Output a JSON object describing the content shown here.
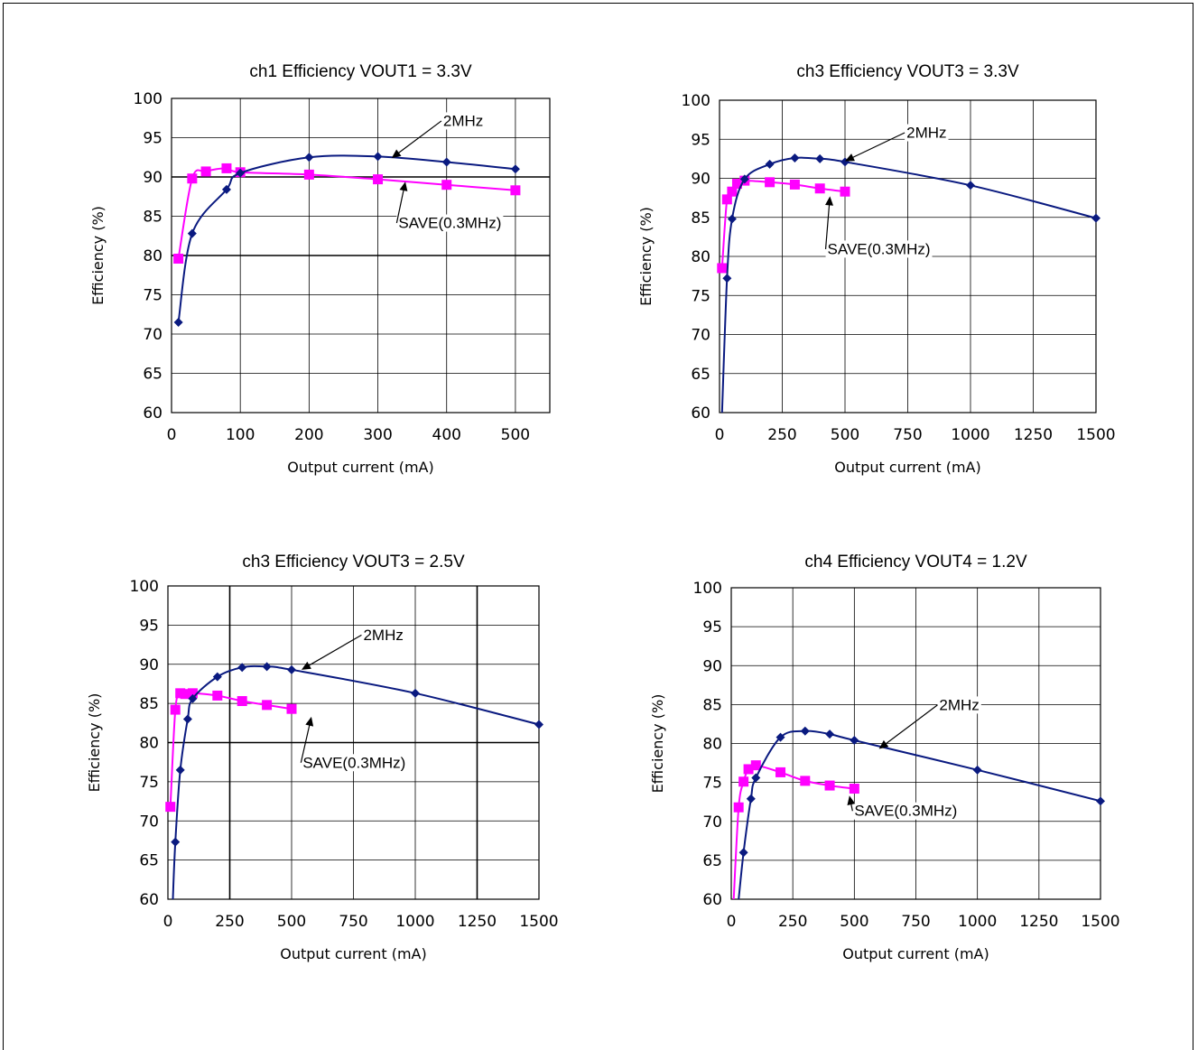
{
  "colors": {
    "series_2mhz": "#0a1a80",
    "series_save": "#ff00ff",
    "grid": "#000000"
  },
  "chart_data": [
    {
      "type": "line",
      "title": "ch1 Efficiency VOUT1 = 3.3V",
      "xlabel": "Output current (mA)",
      "ylabel": "Efficiency (%)",
      "xlim": [
        0,
        550
      ],
      "ylim": [
        60,
        100
      ],
      "xticks": [
        0,
        100,
        200,
        300,
        400,
        500
      ],
      "yticks": [
        60,
        65,
        70,
        75,
        80,
        85,
        90,
        95,
        100
      ],
      "xgrid": [
        0,
        100,
        200,
        300,
        400,
        500,
        550
      ],
      "bold_ygrid": [
        80,
        90
      ],
      "grid": true,
      "series": [
        {
          "name": "2MHz",
          "marker": "diamond",
          "color": "#0a1a80",
          "x": [
            10,
            30,
            80,
            100,
            200,
            300,
            400,
            500
          ],
          "y": [
            71.5,
            82.8,
            88.4,
            90.5,
            92.5,
            92.6,
            91.9,
            91.0
          ]
        },
        {
          "name": "SAVE(0.3MHz)",
          "marker": "square",
          "color": "#ff00ff",
          "x": [
            10,
            30,
            50,
            80,
            100,
            200,
            300,
            400,
            500
          ],
          "y": [
            79.6,
            89.8,
            90.7,
            91.1,
            90.6,
            90.3,
            89.7,
            89.0,
            88.3
          ]
        }
      ],
      "annotations": [
        {
          "text": "2MHz",
          "series": "2MHz",
          "at_x": 320,
          "at_y": 92.4,
          "text_x": 395,
          "text_y": 96.5
        },
        {
          "text": "SAVE(0.3MHz)",
          "series": "SAVE(0.3MHz)",
          "at_x": 340,
          "at_y": 89.4,
          "text_x": 330,
          "text_y": 83.5
        }
      ]
    },
    {
      "type": "line",
      "title": "ch3 Efficiency VOUT3 = 3.3V",
      "xlabel": "Output current (mA)",
      "ylabel": "Efficiency (%)",
      "xlim": [
        0,
        1500
      ],
      "ylim": [
        60,
        100
      ],
      "xticks": [
        0,
        250,
        500,
        750,
        1000,
        1250,
        1500
      ],
      "yticks": [
        60,
        65,
        70,
        75,
        80,
        85,
        90,
        95,
        100
      ],
      "xgrid": [
        0,
        250,
        500,
        750,
        1000,
        1250,
        1500
      ],
      "bold_ygrid": [],
      "grid": true,
      "series": [
        {
          "name": "2MHz",
          "marker": "diamond",
          "color": "#0a1a80",
          "x": [
            10,
            30,
            50,
            100,
            200,
            300,
            400,
            500,
            1000,
            1500
          ],
          "y": [
            60,
            77.2,
            84.8,
            89.9,
            91.8,
            92.6,
            92.5,
            92.1,
            89.1,
            84.9
          ]
        },
        {
          "name": "SAVE(0.3MHz)",
          "marker": "square",
          "color": "#ff00ff",
          "x": [
            10,
            30,
            50,
            70,
            100,
            200,
            300,
            400,
            500
          ],
          "y": [
            78.5,
            87.3,
            88.3,
            89.3,
            89.7,
            89.5,
            89.2,
            88.7,
            88.3
          ]
        }
      ],
      "annotations": [
        {
          "text": "2MHz",
          "series": "2MHz",
          "at_x": 500,
          "at_y": 92.2,
          "text_x": 745,
          "text_y": 95.2
        },
        {
          "text": "SAVE(0.3MHz)",
          "series": "SAVE(0.3MHz)",
          "at_x": 440,
          "at_y": 87.7,
          "text_x": 430,
          "text_y": 80.3
        }
      ]
    },
    {
      "type": "line",
      "title": "ch3 Efficiency VOUT3 = 2.5V",
      "xlabel": "Output current (mA)",
      "ylabel": "Efficiency (%)",
      "xlim": [
        0,
        1500
      ],
      "ylim": [
        60,
        100
      ],
      "xticks": [
        0,
        250,
        500,
        750,
        1000,
        1250,
        1500
      ],
      "yticks": [
        60,
        65,
        70,
        75,
        80,
        85,
        90,
        95,
        100
      ],
      "xgrid": [
        0,
        250,
        500,
        750,
        1000,
        1250,
        1500
      ],
      "bold_xgrid": [
        250,
        1250
      ],
      "bold_ygrid": [
        80
      ],
      "grid": true,
      "series": [
        {
          "name": "2MHz",
          "marker": "diamond",
          "color": "#0a1a80",
          "x": [
            20,
            30,
            50,
            80,
            100,
            200,
            300,
            400,
            500,
            1000,
            1500
          ],
          "y": [
            60,
            67.3,
            76.5,
            83.0,
            85.6,
            88.4,
            89.6,
            89.7,
            89.3,
            86.3,
            82.3
          ]
        },
        {
          "name": "SAVE(0.3MHz)",
          "marker": "square",
          "color": "#ff00ff",
          "x": [
            10,
            30,
            50,
            70,
            100,
            200,
            300,
            400,
            500
          ],
          "y": [
            71.8,
            84.2,
            86.3,
            86.2,
            86.3,
            86.0,
            85.3,
            84.8,
            84.3
          ]
        }
      ],
      "annotations": [
        {
          "text": "2MHz",
          "series": "2MHz",
          "at_x": 540,
          "at_y": 89.3,
          "text_x": 790,
          "text_y": 93.1
        },
        {
          "text": "SAVE(0.3MHz)",
          "series": "SAVE(0.3MHz)",
          "at_x": 580,
          "at_y": 83.3,
          "text_x": 545,
          "text_y": 76.8
        }
      ]
    },
    {
      "type": "line",
      "title": "ch4 Efficiency VOUT4 = 1.2V",
      "xlabel": "Output current (mA)",
      "ylabel": "Efficiency (%)",
      "xlim": [
        0,
        1500
      ],
      "ylim": [
        60,
        100
      ],
      "xticks": [
        0,
        250,
        500,
        750,
        1000,
        1250,
        1500
      ],
      "yticks": [
        60,
        65,
        70,
        75,
        80,
        85,
        90,
        95,
        100
      ],
      "xgrid": [
        0,
        250,
        500,
        750,
        1000,
        1250,
        1500
      ],
      "bold_ygrid": [],
      "grid": true,
      "series": [
        {
          "name": "2MHz",
          "marker": "diamond",
          "color": "#0a1a80",
          "x": [
            30,
            50,
            80,
            100,
            200,
            300,
            400,
            500,
            1000,
            1500
          ],
          "y": [
            60,
            66.0,
            72.9,
            75.6,
            80.8,
            81.6,
            81.2,
            80.4,
            76.6,
            72.6
          ]
        },
        {
          "name": "SAVE(0.3MHz)",
          "marker": "square",
          "color": "#ff00ff",
          "x": [
            10,
            30,
            50,
            70,
            100,
            200,
            300,
            400,
            500
          ],
          "y": [
            60,
            71.8,
            75.1,
            76.7,
            77.2,
            76.3,
            75.2,
            74.6,
            74.2
          ]
        }
      ],
      "annotations": [
        {
          "text": "2MHz",
          "series": "2MHz",
          "at_x": 600,
          "at_y": 79.3,
          "text_x": 845,
          "text_y": 84.3
        },
        {
          "text": "SAVE(0.3MHz)",
          "series": "SAVE(0.3MHz)",
          "at_x": 480,
          "at_y": 73.3,
          "text_x": 500,
          "text_y": 70.7
        }
      ]
    }
  ]
}
